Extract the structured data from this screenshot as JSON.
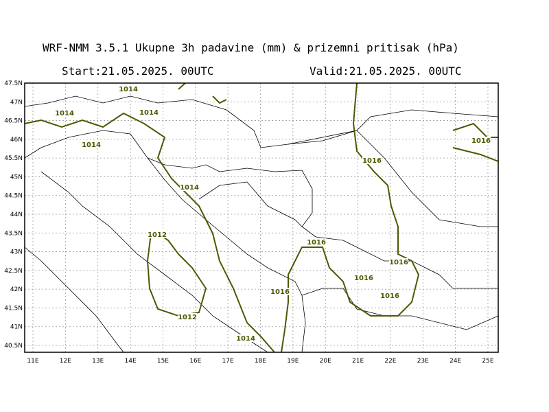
{
  "header": {
    "title": "WRF-NMM 3.5.1  Ukupne 3h padavine (mm) & prizemni pritisak (hPa)",
    "start": "Start:21.05.2025.  00UTC",
    "valid": "Valid:21.05.2025.  00UTC"
  },
  "map": {
    "lon_ticks": [
      "11E",
      "12E",
      "13E",
      "14E",
      "15E",
      "16E",
      "17E",
      "18E",
      "19E",
      "20E",
      "21E",
      "22E",
      "23E",
      "24E",
      "25E"
    ],
    "lat_ticks": [
      "47.5N",
      "47N",
      "46.5N",
      "46N",
      "45.5N",
      "45N",
      "44.5N",
      "44N",
      "43.5N",
      "43N",
      "42.5N",
      "42N",
      "41.5N",
      "41N",
      "40.5N"
    ],
    "contour_labels": [
      1014,
      1014,
      1014,
      1014,
      1014,
      1012,
      1012,
      1014,
      1016,
      1016,
      1016,
      1016,
      1016,
      1016,
      1016
    ]
  }
}
